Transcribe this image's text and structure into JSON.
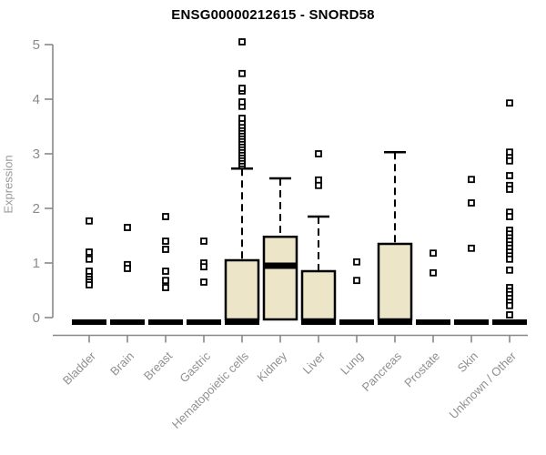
{
  "colors": {
    "background": "#ffffff",
    "title": "#000000",
    "axis": "#888888",
    "tick_label": "#8a8a8a",
    "x_label": "#909090",
    "box_fill": "#ede5c8",
    "box_border": "#000000",
    "median": "#000000",
    "outlier_stroke": "#000000",
    "outlier_fill": "#ffffff"
  },
  "chart_data": {
    "type": "boxplot",
    "title": "ENSG00000212615 - SNORD58",
    "xlabel": "",
    "ylabel": "Expression",
    "ylim": [
      0,
      5
    ],
    "yticks": [
      0,
      1,
      2,
      3,
      4,
      5
    ],
    "grid": false,
    "legend": false,
    "categories": [
      "Bladder",
      "Brain",
      "Breast",
      "Gastric",
      "Hematopoietic cells",
      "Kidney",
      "Liver",
      "Lung",
      "Pancreas",
      "Prostate",
      "Skin",
      "Unknown / Other"
    ],
    "boxes": [
      {
        "label": "Bladder",
        "q1": 0,
        "median": 0,
        "q3": 0,
        "whisker_low": 0,
        "whisker_high": 0,
        "outliers": [
          1.77,
          1.2,
          1.07,
          0.85,
          0.75,
          0.7,
          0.65,
          0.6
        ]
      },
      {
        "label": "Brain",
        "q1": 0,
        "median": 0,
        "q3": 0,
        "whisker_low": 0,
        "whisker_high": 0,
        "outliers": [
          1.65,
          0.97,
          0.9
        ]
      },
      {
        "label": "Breast",
        "q1": 0,
        "median": 0,
        "q3": 0,
        "whisker_low": 0,
        "whisker_high": 0,
        "outliers": [
          1.85,
          1.4,
          1.25,
          0.85,
          0.68,
          0.55
        ]
      },
      {
        "label": "Gastric",
        "q1": 0,
        "median": 0,
        "q3": 0,
        "whisker_low": 0,
        "whisker_high": 0,
        "outliers": [
          1.4,
          1.0,
          0.93,
          0.65
        ]
      },
      {
        "label": "Hematopoietic cells",
        "q1": 0,
        "median": 0,
        "q3": 1.05,
        "whisker_low": 0,
        "whisker_high": 2.73,
        "outliers": [
          2.78,
          2.82,
          2.87,
          2.92,
          2.97,
          3.02,
          3.07,
          3.12,
          3.17,
          3.22,
          3.27,
          3.32,
          3.37,
          3.42,
          3.47,
          3.52,
          3.58,
          3.65,
          3.87,
          3.95,
          4.15,
          4.2,
          4.47,
          5.05
        ]
      },
      {
        "label": "Kidney",
        "q1": 0,
        "median": 0.95,
        "q3": 1.48,
        "whisker_low": 0,
        "whisker_high": 2.55,
        "outliers": []
      },
      {
        "label": "Liver",
        "q1": 0,
        "median": 0,
        "q3": 0.85,
        "whisker_low": 0,
        "whisker_high": 1.85,
        "outliers": [
          3.0,
          2.52,
          2.42
        ]
      },
      {
        "label": "Lung",
        "q1": 0,
        "median": 0,
        "q3": 0,
        "whisker_low": 0,
        "whisker_high": 0,
        "outliers": [
          1.02,
          0.68
        ]
      },
      {
        "label": "Pancreas",
        "q1": 0,
        "median": 0,
        "q3": 1.35,
        "whisker_low": 0,
        "whisker_high": 3.03,
        "outliers": []
      },
      {
        "label": "Prostate",
        "q1": 0,
        "median": 0,
        "q3": 0,
        "whisker_low": 0,
        "whisker_high": 0,
        "outliers": [
          1.18,
          0.82
        ]
      },
      {
        "label": "Skin",
        "q1": 0,
        "median": 0,
        "q3": 0,
        "whisker_low": 0,
        "whisker_high": 0,
        "outliers": [
          2.53,
          2.1,
          1.27
        ]
      },
      {
        "label": "Unknown / Other",
        "q1": 0,
        "median": 0,
        "q3": 0,
        "whisker_low": 0,
        "whisker_high": 0,
        "outliers": [
          3.93,
          3.03,
          2.93,
          2.87,
          2.6,
          2.42,
          2.35,
          1.93,
          1.85,
          1.6,
          1.53,
          1.46,
          1.4,
          1.33,
          1.27,
          1.2,
          1.13,
          1.07,
          0.87,
          0.55,
          0.48,
          0.42,
          0.35,
          0.28,
          0.22,
          0.05
        ]
      }
    ]
  }
}
